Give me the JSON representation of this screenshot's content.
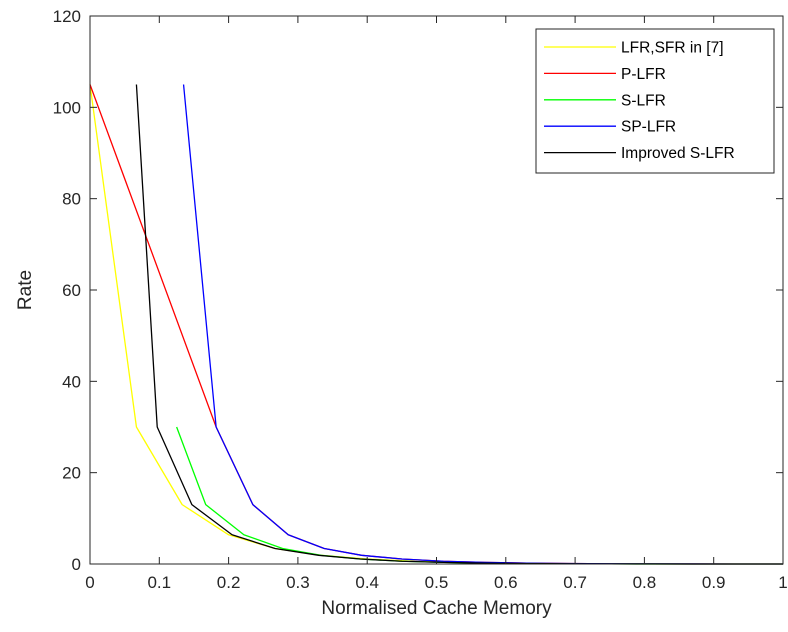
{
  "chart_data": {
    "type": "line",
    "title": "",
    "xlabel": "Normalised Cache Memory",
    "ylabel": "Rate",
    "xlim": [
      0,
      1
    ],
    "ylim": [
      0,
      120
    ],
    "xticks": [
      0,
      0.1,
      0.2,
      0.3,
      0.4,
      0.5,
      0.6,
      0.7,
      0.8,
      0.9,
      1
    ],
    "xtick_labels": [
      "0",
      "0.1",
      "0.2",
      "0.3",
      "0.4",
      "0.5",
      "0.6",
      "0.7",
      "0.8",
      "0.9",
      "1"
    ],
    "yticks": [
      0,
      20,
      40,
      60,
      80,
      100,
      120
    ],
    "ytick_labels": [
      "0",
      "20",
      "40",
      "60",
      "80",
      "100",
      "120"
    ],
    "grid": false,
    "legend_position": "top-right",
    "series": [
      {
        "name": "LFR,SFR in [7]",
        "color": "#ffff00",
        "x": [
          0,
          0.067,
          0.133,
          0.2,
          0.267,
          0.333,
          0.4,
          0.467,
          0.533,
          0.6,
          0.667,
          0.733,
          0.8,
          0.867,
          0.933,
          1
        ],
        "y": [
          105,
          30,
          13,
          6.4,
          3.4,
          1.9,
          1.1,
          0.6,
          0.35,
          0.2,
          0.1,
          0.05,
          0.02,
          0.01,
          0,
          0
        ]
      },
      {
        "name": "P-LFR",
        "color": "#ff0000",
        "x": [
          0,
          0.182,
          0.235,
          0.286,
          0.338,
          0.392,
          0.45,
          0.51,
          0.57,
          0.63,
          0.69,
          0.75,
          0.81,
          0.87,
          0.93,
          1
        ],
        "y": [
          105,
          30,
          13,
          6.4,
          3.4,
          1.9,
          1.1,
          0.6,
          0.35,
          0.2,
          0.1,
          0.05,
          0.02,
          0.01,
          0,
          0
        ]
      },
      {
        "name": "S-LFR",
        "color": "#00ff00",
        "x": [
          0.125,
          0.167,
          0.222,
          0.278,
          0.333,
          0.39,
          0.45,
          0.51,
          0.57,
          0.63,
          0.69,
          0.75,
          0.81,
          0.87,
          0.93,
          1
        ],
        "y": [
          30,
          13,
          6.4,
          3.4,
          1.9,
          1.1,
          0.6,
          0.35,
          0.2,
          0.1,
          0.05,
          0.02,
          0.01,
          0,
          0,
          0
        ]
      },
      {
        "name": "SP-LFR",
        "color": "#0000ff",
        "x": [
          0.135,
          0.182,
          0.235,
          0.286,
          0.338,
          0.392,
          0.45,
          0.51,
          0.57,
          0.63,
          0.69,
          0.75,
          0.81,
          0.87,
          0.93,
          1
        ],
        "y": [
          105,
          30,
          13,
          6.4,
          3.4,
          1.9,
          1.1,
          0.6,
          0.35,
          0.2,
          0.1,
          0.05,
          0.02,
          0.01,
          0,
          0
        ]
      },
      {
        "name": "Improved S-LFR",
        "color": "#000000",
        "x": [
          0.067,
          0.097,
          0.147,
          0.205,
          0.267,
          0.33,
          0.39,
          0.45,
          0.51,
          0.57,
          0.63,
          0.69,
          0.75,
          0.81,
          0.87,
          1
        ],
        "y": [
          105,
          30,
          13,
          6.4,
          3.4,
          1.9,
          1.1,
          0.6,
          0.35,
          0.2,
          0.1,
          0.05,
          0.02,
          0.01,
          0,
          0
        ]
      }
    ]
  }
}
